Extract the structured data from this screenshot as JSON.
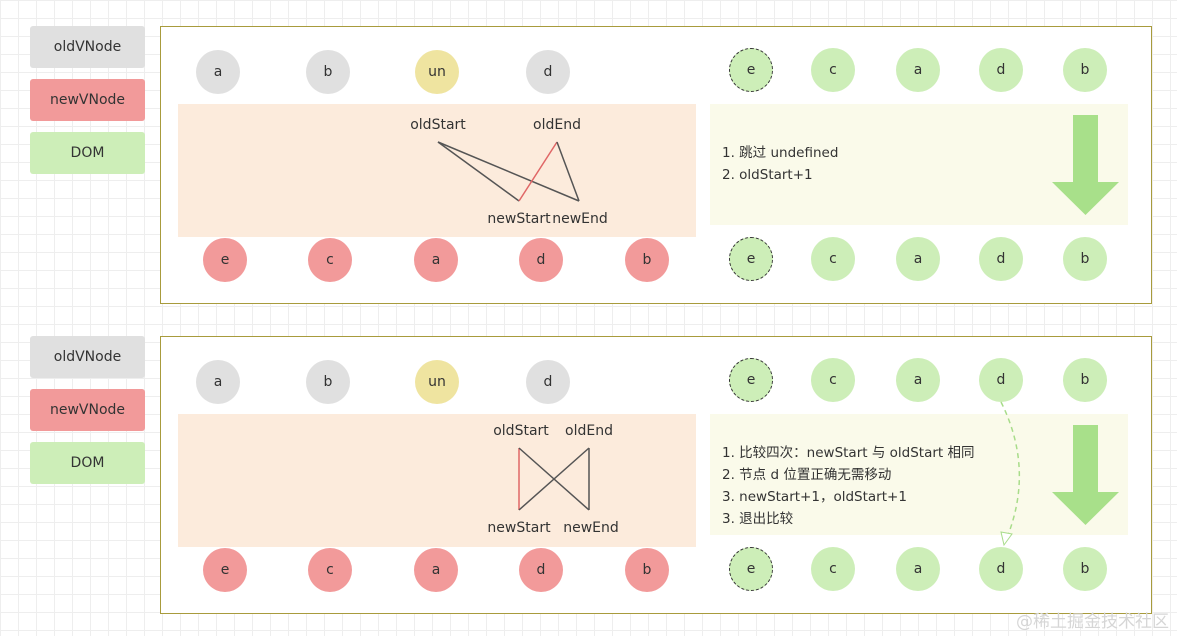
{
  "legend": {
    "old": "oldVNode",
    "new": "newVNode",
    "dom": "DOM"
  },
  "panels": [
    {
      "old": [
        "a",
        "b",
        "un",
        "d"
      ],
      "new": [
        "e",
        "c",
        "a",
        "d",
        "b"
      ],
      "dom_top": [
        "e",
        "c",
        "a",
        "d",
        "b"
      ],
      "dom_bottom": [
        "e",
        "c",
        "a",
        "d",
        "b"
      ],
      "labels": {
        "oldStart": "oldStart",
        "oldEnd": "oldEnd",
        "newStart": "newStart",
        "newEnd": "newEnd"
      },
      "notes": [
        "1. 跳过 undefined",
        "2. oldStart+1"
      ]
    },
    {
      "old": [
        "a",
        "b",
        "un",
        "d"
      ],
      "new": [
        "e",
        "c",
        "a",
        "d",
        "b"
      ],
      "dom_top": [
        "e",
        "c",
        "a",
        "d",
        "b"
      ],
      "dom_bottom": [
        "e",
        "c",
        "a",
        "d",
        "b"
      ],
      "labels": {
        "oldStart": "oldStart",
        "oldEnd": "oldEnd",
        "newStart": "newStart",
        "newEnd": "newEnd"
      },
      "notes": [
        "1. 比较四次：newStart 与 oldStart 相同",
        "2. 节点 d 位置正确无需移动",
        "3. newStart+1，oldStart+1",
        "3. 退出比较"
      ]
    }
  ],
  "colors": {
    "old": "#e0e0e0",
    "undefined": "#efe4a0",
    "new": "#f29a9a",
    "dom": "#cdeeb8",
    "match_line": "#e06666",
    "line": "#555555",
    "arrow": "#a8e08a"
  },
  "watermark": "@稀土掘金技术社区"
}
